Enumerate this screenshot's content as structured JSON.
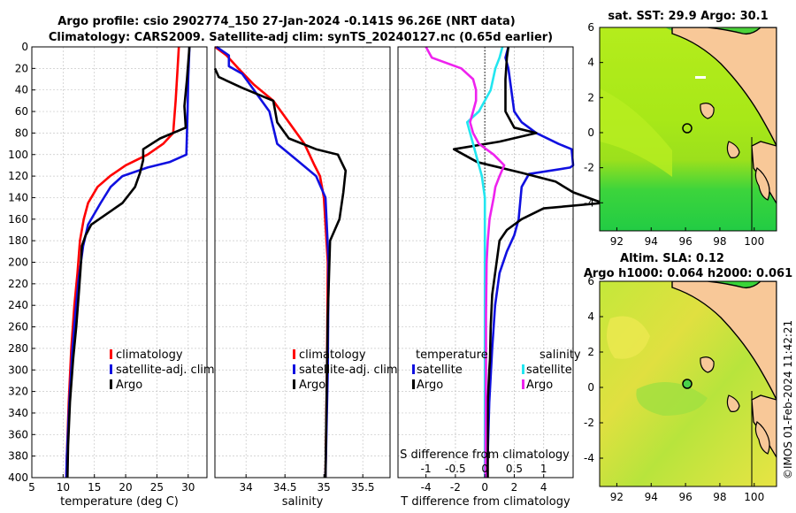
{
  "title": {
    "line1": "Argo profile: csio 2902774_150 27-Jan-2024 -0.141S 96.26E (NRT data)",
    "line2": "Climatology: CARS2009. Satellite-adj clim: synTS_20240127.nc (0.65d earlier)"
  },
  "side_label": "©IMOS 01-Feb-2024 11:42:21",
  "colors": {
    "red": "#ff0000",
    "blue": "#1010e0",
    "black": "#000000",
    "cyan": "#22e6f0",
    "magenta": "#ee22ee",
    "land": "#f8c898",
    "grid": "#c8c8c8"
  },
  "chart_data": [
    {
      "type": "line",
      "id": "temperature",
      "xlabel": "temperature (deg C)",
      "xlim": [
        5,
        33
      ],
      "xticks": [
        "5",
        "10",
        "15",
        "20",
        "25",
        "30"
      ],
      "xtick_values": [
        5,
        10,
        15,
        20,
        25,
        30
      ],
      "ylim": [
        0,
        400
      ],
      "yticks": [
        "0",
        "20",
        "40",
        "60",
        "80",
        "100",
        "120",
        "140",
        "160",
        "180",
        "200",
        "220",
        "240",
        "260",
        "280",
        "300",
        "320",
        "340",
        "360",
        "380",
        "400"
      ],
      "ytick_values": [
        0,
        20,
        40,
        60,
        80,
        100,
        120,
        140,
        160,
        180,
        200,
        220,
        240,
        260,
        280,
        300,
        320,
        340,
        360,
        380,
        400
      ],
      "legend": [
        "climatology",
        "satellite-adj. clim",
        "Argo"
      ],
      "series": [
        {
          "name": "climatology",
          "color": "red",
          "points": [
            [
              28.5,
              0
            ],
            [
              28.3,
              20
            ],
            [
              28.0,
              50
            ],
            [
              27.6,
              80
            ],
            [
              26.0,
              90
            ],
            [
              23.5,
              100
            ],
            [
              20.0,
              110
            ],
            [
              17.5,
              120
            ],
            [
              15.5,
              130
            ],
            [
              14.0,
              145
            ],
            [
              13.3,
              160
            ],
            [
              12.7,
              180
            ],
            [
              12.3,
              210
            ],
            [
              11.8,
              240
            ],
            [
              11.3,
              280
            ],
            [
              10.9,
              330
            ],
            [
              10.6,
              380
            ],
            [
              10.5,
              400
            ]
          ]
        },
        {
          "name": "satellite-adj. clim",
          "color": "blue",
          "points": [
            [
              30.2,
              0
            ],
            [
              30.0,
              30
            ],
            [
              29.9,
              60
            ],
            [
              29.7,
              100
            ],
            [
              27.0,
              107
            ],
            [
              23.5,
              112
            ],
            [
              19.5,
              120
            ],
            [
              17.6,
              130
            ],
            [
              16.0,
              145
            ],
            [
              14.0,
              165
            ],
            [
              13.2,
              185
            ],
            [
              12.5,
              215
            ],
            [
              12.0,
              245
            ],
            [
              11.5,
              280
            ],
            [
              11.0,
              330
            ],
            [
              10.6,
              380
            ],
            [
              10.5,
              400
            ]
          ]
        },
        {
          "name": "Argo",
          "color": "black",
          "points": [
            [
              30.2,
              0
            ],
            [
              29.8,
              30
            ],
            [
              29.4,
              55
            ],
            [
              29.6,
              75
            ],
            [
              25.5,
              85
            ],
            [
              22.8,
              95
            ],
            [
              22.8,
              105
            ],
            [
              22.3,
              117
            ],
            [
              21.5,
              130
            ],
            [
              19.5,
              145
            ],
            [
              17.0,
              155
            ],
            [
              14.5,
              165
            ],
            [
              13.6,
              175
            ],
            [
              13.0,
              185
            ],
            [
              12.8,
              205
            ],
            [
              12.5,
              230
            ],
            [
              12.1,
              260
            ],
            [
              11.6,
              290
            ],
            [
              11.1,
              330
            ],
            [
              10.8,
              370
            ],
            [
              10.7,
              400
            ]
          ]
        }
      ]
    },
    {
      "type": "line",
      "id": "salinity",
      "xlabel": "salinity",
      "xlim": [
        33.6,
        35.85
      ],
      "xticks": [
        "34",
        "34.5",
        "35",
        "35.5"
      ],
      "xtick_values": [
        34,
        34.5,
        35,
        35.5
      ],
      "ylim": [
        0,
        400
      ],
      "legend": [
        "climatology",
        "satellite-adj. clim",
        "Argo"
      ],
      "series": [
        {
          "name": "climatology",
          "color": "red",
          "points": [
            [
              33.6,
              0
            ],
            [
              33.75,
              8
            ],
            [
              33.9,
              20
            ],
            [
              34.1,
              35
            ],
            [
              34.35,
              50
            ],
            [
              34.55,
              70
            ],
            [
              34.75,
              90
            ],
            [
              34.88,
              110
            ],
            [
              34.95,
              120
            ],
            [
              35.0,
              140
            ],
            [
              35.05,
              200
            ],
            [
              35.04,
              300
            ],
            [
              35.02,
              400
            ]
          ]
        },
        {
          "name": "satellite-adj. clim",
          "color": "blue",
          "points": [
            [
              33.62,
              0
            ],
            [
              33.78,
              8
            ],
            [
              33.78,
              18
            ],
            [
              33.95,
              25
            ],
            [
              34.3,
              60
            ],
            [
              34.4,
              90
            ],
            [
              34.65,
              105
            ],
            [
              34.9,
              120
            ],
            [
              35.02,
              140
            ],
            [
              35.06,
              200
            ],
            [
              35.05,
              300
            ],
            [
              35.02,
              400
            ]
          ]
        },
        {
          "name": "Argo",
          "color": "black",
          "points": [
            [
              33.6,
              20
            ],
            [
              33.65,
              28
            ],
            [
              33.95,
              38
            ],
            [
              34.35,
              50
            ],
            [
              34.4,
              70
            ],
            [
              34.55,
              85
            ],
            [
              34.9,
              95
            ],
            [
              35.18,
              100
            ],
            [
              35.28,
              115
            ],
            [
              35.25,
              135
            ],
            [
              35.2,
              160
            ],
            [
              35.14,
              170
            ],
            [
              35.08,
              180
            ],
            [
              35.05,
              250
            ],
            [
              35.04,
              300
            ],
            [
              35.02,
              400
            ]
          ]
        }
      ]
    },
    {
      "type": "line",
      "id": "difference",
      "xlabel": "T difference from climatology",
      "top_label": "S difference from climatology",
      "xlim": [
        -5.9,
        6.0
      ],
      "xticks": [
        "-4",
        "-2",
        "0",
        "2",
        "4"
      ],
      "xtick_values": [
        -4,
        -2,
        0,
        2,
        4
      ],
      "top_ticks": [
        "-1",
        "-0.5",
        "0",
        "0.5",
        "1"
      ],
      "top_tick_values": [
        -1,
        -0.5,
        0,
        0.5,
        1
      ],
      "s_scale": 4,
      "ylim": [
        0,
        400
      ],
      "legend_temperature_title": "temperature",
      "legend_salinity_title": "salinity",
      "legend_temperature": [
        "satellite",
        "Argo"
      ],
      "legend_salinity": [
        "satellite",
        "Argo"
      ],
      "series": [
        {
          "name": "temperature satellite",
          "color": "blue",
          "points": [
            [
              1.6,
              0
            ],
            [
              1.4,
              10
            ],
            [
              1.6,
              20
            ],
            [
              1.8,
              40
            ],
            [
              2.0,
              60
            ],
            [
              2.5,
              70
            ],
            [
              3.5,
              80
            ],
            [
              5.0,
              90
            ],
            [
              5.9,
              95
            ],
            [
              6.0,
              110
            ],
            [
              5.8,
              112
            ],
            [
              3.0,
              118
            ],
            [
              2.5,
              130
            ],
            [
              2.4,
              145
            ],
            [
              2.3,
              160
            ],
            [
              2.0,
              175
            ],
            [
              1.5,
              190
            ],
            [
              1.0,
              210
            ],
            [
              0.7,
              240
            ],
            [
              0.5,
              280
            ],
            [
              0.3,
              330
            ],
            [
              0.15,
              400
            ]
          ]
        },
        {
          "name": "temperature Argo",
          "color": "black",
          "points": [
            [
              1.6,
              0
            ],
            [
              1.5,
              10
            ],
            [
              1.4,
              30
            ],
            [
              1.4,
              60
            ],
            [
              2.0,
              75
            ],
            [
              3.5,
              80
            ],
            [
              1.0,
              88
            ],
            [
              -2.1,
              95
            ],
            [
              -0.5,
              107
            ],
            [
              2.5,
              117
            ],
            [
              4.8,
              125
            ],
            [
              6.0,
              135
            ],
            [
              8.0,
              145
            ],
            [
              4.0,
              150
            ],
            [
              2.5,
              160
            ],
            [
              1.5,
              170
            ],
            [
              1.0,
              180
            ],
            [
              0.8,
              200
            ],
            [
              0.5,
              230
            ],
            [
              0.4,
              260
            ],
            [
              0.35,
              290
            ],
            [
              0.3,
              300
            ],
            [
              0.2,
              330
            ],
            [
              0.2,
              400
            ]
          ]
        },
        {
          "name": "salinity satellite",
          "color": "cyan",
          "points": [
            [
              0.3,
              0
            ],
            [
              0.25,
              10
            ],
            [
              0.18,
              20
            ],
            [
              0.1,
              40
            ],
            [
              -0.1,
              60
            ],
            [
              -0.3,
              70
            ],
            [
              -0.25,
              80
            ],
            [
              -0.2,
              90
            ],
            [
              -0.15,
              100
            ],
            [
              -0.05,
              120
            ],
            [
              0,
              140
            ],
            [
              0,
              200
            ],
            [
              0,
              300
            ],
            [
              0,
              400
            ]
          ]
        },
        {
          "name": "salinity Argo",
          "color": "magenta",
          "points": [
            [
              -1.0,
              0
            ],
            [
              -0.95,
              5
            ],
            [
              -0.9,
              10
            ],
            [
              -0.4,
              20
            ],
            [
              -0.2,
              30
            ],
            [
              -0.15,
              40
            ],
            [
              -0.15,
              50
            ],
            [
              -0.2,
              60
            ],
            [
              -0.25,
              70
            ],
            [
              -0.2,
              80
            ],
            [
              -0.1,
              90
            ],
            [
              0.15,
              100
            ],
            [
              0.33,
              110
            ],
            [
              0.25,
              120
            ],
            [
              0.18,
              130
            ],
            [
              0.15,
              140
            ],
            [
              0.08,
              160
            ],
            [
              0.05,
              180
            ],
            [
              0.03,
              200
            ],
            [
              0.02,
              250
            ],
            [
              0.02,
              300
            ],
            [
              0.01,
              400
            ]
          ]
        }
      ]
    },
    {
      "type": "heatmap",
      "id": "sst-map",
      "title": "sat. SST: 29.9 Argo: 30.1",
      "xticks": [
        "92",
        "94",
        "96",
        "98",
        "100"
      ],
      "xtick_values": [
        92,
        94,
        96,
        98,
        100
      ],
      "yticks": [
        "6",
        "4",
        "2",
        "0",
        "-2",
        "-4"
      ],
      "ytick_values": [
        6,
        4,
        2,
        0,
        -2,
        -4
      ],
      "xlim": [
        91.0,
        101.3
      ],
      "ylim": [
        -5.6,
        6.0
      ],
      "argo_position": [
        96.26,
        -0.141
      ]
    },
    {
      "type": "heatmap",
      "id": "sla-map",
      "title_line1": "Altim. SLA: 0.12",
      "title_line2": "Argo h1000: 0.064 h2000: 0.061",
      "xticks": [
        "92",
        "94",
        "96",
        "98",
        "100"
      ],
      "xtick_values": [
        92,
        94,
        96,
        98,
        100
      ],
      "yticks": [
        "6",
        "4",
        "2",
        "0",
        "-2",
        "-4"
      ],
      "ytick_values": [
        6,
        4,
        2,
        0,
        -2,
        -4
      ],
      "xlim": [
        91.0,
        101.3
      ],
      "ylim": [
        -5.6,
        6.0
      ],
      "argo_position": [
        96.26,
        -0.141
      ]
    }
  ]
}
